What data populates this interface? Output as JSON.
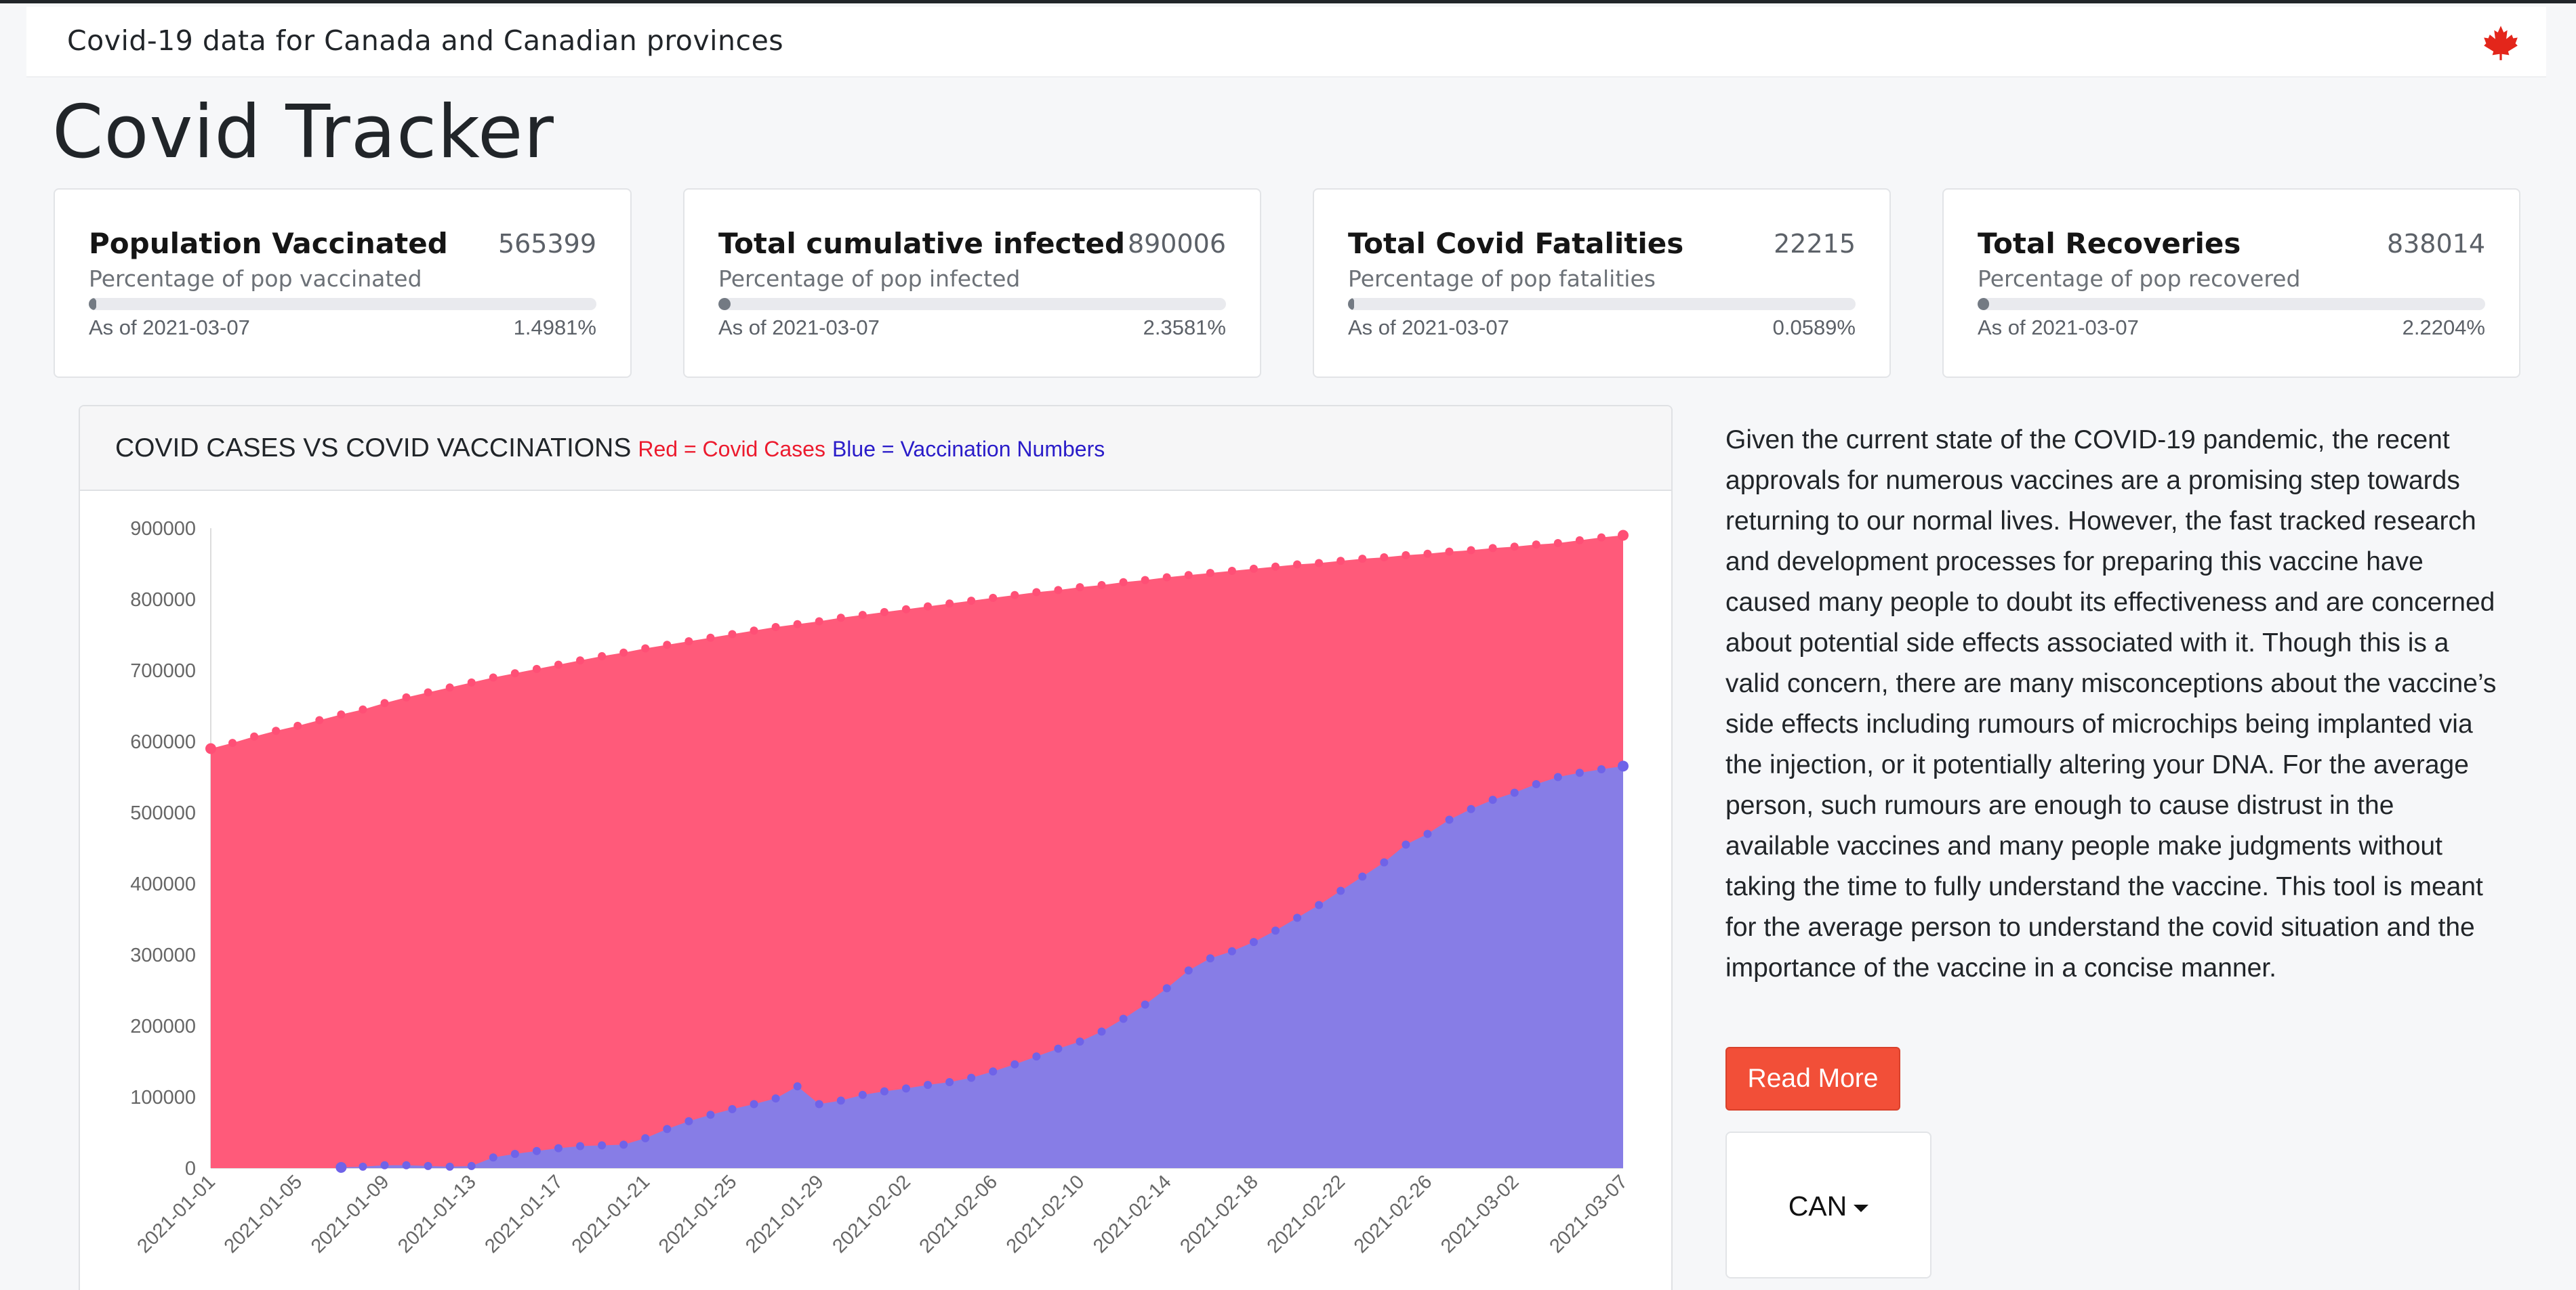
{
  "header": {
    "title": "Covid-19 data for Canada and Canadian provinces",
    "icon": "maple-leaf-icon",
    "icon_color": "#e3261b"
  },
  "page": {
    "title": "Covid Tracker"
  },
  "cards": [
    {
      "title": "Population Vaccinated",
      "value": "565399",
      "subtitle": "Percentage of pop vaccinated",
      "date": "As of 2021-03-07",
      "percent": "1.4981%",
      "fill": 0.014981
    },
    {
      "title": "Total cumulative infected",
      "value": "890006",
      "subtitle": "Percentage of pop infected",
      "date": "As of 2021-03-07",
      "percent": "2.3581%",
      "fill": 0.023581
    },
    {
      "title": "Total Covid Fatalities",
      "value": "22215",
      "subtitle": "Percentage of pop fatalities",
      "date": "As of 2021-03-07",
      "percent": "0.0589%",
      "fill": 0.000589
    },
    {
      "title": "Total Recoveries",
      "value": "838014",
      "subtitle": "Percentage of pop recovered",
      "date": "As of 2021-03-07",
      "percent": "2.2204%",
      "fill": 0.022204
    }
  ],
  "chart_header": {
    "title": "COVID CASES VS COVID VACCINATIONS",
    "legend_red": "Red = Covid Cases",
    "legend_blue": "Blue = Vaccination Numbers"
  },
  "description": "Given the current state of the COVID-19 pandemic, the recent approvals for numerous vaccines are a promising step towards returning to our normal lives. However, the fast tracked research and development processes for preparing this vaccine have caused many people to doubt its effectiveness and are concerned about potential side effects associated with it. Though this is a valid concern, there are many misconceptions about the vaccine’s side effects including rumours of microchips being implanted via the injection, or it potentially altering your DNA. For the average person, such rumours are enough to cause distrust in the available vaccines and many people make judgments without taking the time to fully understand the vaccine. This tool is meant for the average person to understand the covid situation and the importance of the vaccine in a concise manner.",
  "read_more_label": "Read More",
  "region": {
    "selected": "CAN"
  },
  "colors": {
    "cases_fill": "#ff5a7a",
    "cases_point": "#ff4f76",
    "vacc_fill": "#877de6",
    "vacc_point": "#6f63e8",
    "button": "#f24f38"
  },
  "chart_data": {
    "type": "area",
    "title": "COVID CASES VS COVID VACCINATIONS",
    "xlabel": "",
    "ylabel": "",
    "ylim": [
      0,
      900000
    ],
    "yticks": [
      0,
      100000,
      200000,
      300000,
      400000,
      500000,
      600000,
      700000,
      800000,
      900000
    ],
    "xtick_labels": [
      "2021-01-01",
      "2021-01-05",
      "2021-01-09",
      "2021-01-13",
      "2021-01-17",
      "2021-01-21",
      "2021-01-25",
      "2021-01-29",
      "2021-02-02",
      "2021-02-06",
      "2021-02-10",
      "2021-02-14",
      "2021-02-18",
      "2021-02-22",
      "2021-02-26",
      "2021-03-02",
      "2021-03-07"
    ],
    "x": [
      "2021-01-01",
      "2021-01-02",
      "2021-01-03",
      "2021-01-04",
      "2021-01-05",
      "2021-01-06",
      "2021-01-07",
      "2021-01-08",
      "2021-01-09",
      "2021-01-10",
      "2021-01-11",
      "2021-01-12",
      "2021-01-13",
      "2021-01-14",
      "2021-01-15",
      "2021-01-16",
      "2021-01-17",
      "2021-01-18",
      "2021-01-19",
      "2021-01-20",
      "2021-01-21",
      "2021-01-22",
      "2021-01-23",
      "2021-01-24",
      "2021-01-25",
      "2021-01-26",
      "2021-01-27",
      "2021-01-28",
      "2021-01-29",
      "2021-01-30",
      "2021-01-31",
      "2021-02-01",
      "2021-02-02",
      "2021-02-03",
      "2021-02-04",
      "2021-02-05",
      "2021-02-06",
      "2021-02-07",
      "2021-02-08",
      "2021-02-09",
      "2021-02-10",
      "2021-02-11",
      "2021-02-12",
      "2021-02-13",
      "2021-02-14",
      "2021-02-15",
      "2021-02-16",
      "2021-02-17",
      "2021-02-18",
      "2021-02-19",
      "2021-02-20",
      "2021-02-21",
      "2021-02-22",
      "2021-02-23",
      "2021-02-24",
      "2021-02-25",
      "2021-02-26",
      "2021-02-27",
      "2021-02-28",
      "2021-03-01",
      "2021-03-02",
      "2021-03-03",
      "2021-03-04",
      "2021-03-05",
      "2021-03-06",
      "2021-03-07"
    ],
    "series": [
      {
        "name": "Red = Covid Cases",
        "values": [
          590000,
          598000,
          607000,
          615000,
          622000,
          630000,
          638000,
          645000,
          654000,
          662000,
          669000,
          676000,
          683000,
          690000,
          696000,
          702000,
          708000,
          714000,
          720000,
          725000,
          731000,
          736000,
          741000,
          746000,
          751000,
          756000,
          761000,
          765000,
          769000,
          774000,
          778000,
          782000,
          786000,
          790000,
          794000,
          798000,
          802000,
          806000,
          810000,
          813000,
          817000,
          820000,
          824000,
          827000,
          831000,
          834000,
          837000,
          840000,
          843000,
          846000,
          849000,
          851000,
          854000,
          857000,
          859000,
          862000,
          864000,
          867000,
          869000,
          872000,
          874000,
          877000,
          879000,
          883000,
          887000,
          890006
        ]
      },
      {
        "name": "Blue = Vaccination Numbers",
        "values": [
          null,
          null,
          null,
          null,
          null,
          null,
          1000,
          2000,
          4000,
          4000,
          3000,
          2000,
          3000,
          15000,
          20000,
          24000,
          28000,
          31000,
          32000,
          33000,
          42000,
          55000,
          66000,
          75000,
          83000,
          90000,
          98000,
          115000,
          90000,
          95000,
          103000,
          108000,
          112000,
          117000,
          121000,
          127000,
          136000,
          146000,
          157000,
          168000,
          178000,
          192000,
          210000,
          230000,
          253000,
          278000,
          295000,
          305000,
          318000,
          334000,
          352000,
          370000,
          390000,
          410000,
          430000,
          455000,
          470000,
          490000,
          505000,
          518000,
          528000,
          540000,
          550000,
          556000,
          561000,
          565399
        ]
      }
    ]
  }
}
